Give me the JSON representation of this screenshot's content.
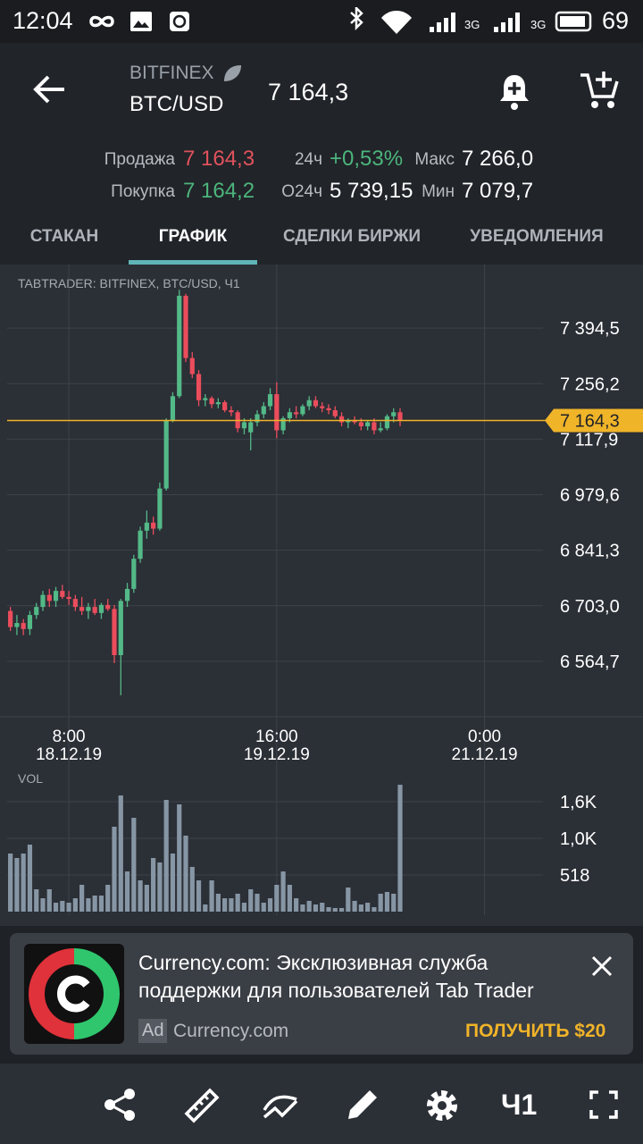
{
  "status_bar": {
    "time": "12:04",
    "network_1": "3G",
    "network_2": "3G",
    "battery": "69"
  },
  "header": {
    "exchange": "BITFINEX",
    "pair": "BTC/USD",
    "price": "7 164,3"
  },
  "stats": [
    {
      "label": "Продажа",
      "value": "7 164,3",
      "color": "#e0525c"
    },
    {
      "label": "Покупка",
      "value": "7 164,2",
      "color": "#4cb57c"
    },
    {
      "label": "24ч",
      "value": "+0,53%",
      "color": "#4cb57c"
    },
    {
      "label": "О24ч",
      "value": "5 739,15",
      "color": "#ffffff"
    },
    {
      "label": "Макс",
      "value": "7 266,0",
      "color": "#ffffff"
    },
    {
      "label": "Мин",
      "value": "7 079,7",
      "color": "#ffffff"
    }
  ],
  "tabs": [
    "СТАКАН",
    "ГРАФИК",
    "СДЕЛКИ БИРЖИ",
    "УВЕДОМЛЕНИЯ"
  ],
  "active_tab": 1,
  "chart_data": {
    "type": "candlestick",
    "title": "TABTRADER: BITFINEX, BTC/USD, Ч1",
    "x": [
      0,
      1,
      2,
      3,
      4,
      5,
      6,
      7,
      8,
      9,
      10,
      11,
      12,
      13,
      14,
      15,
      16,
      17,
      18,
      19,
      20,
      21,
      22,
      23,
      24,
      25,
      26,
      27,
      28,
      29,
      30,
      31,
      32,
      33,
      34,
      35,
      36,
      37,
      38,
      39,
      40,
      41,
      42,
      43,
      44,
      45,
      46,
      47,
      48,
      49,
      50,
      51,
      52,
      53,
      54,
      55,
      56,
      57,
      58,
      59,
      60
    ],
    "open": [
      6690,
      6650,
      6660,
      6645,
      6680,
      6700,
      6730,
      6715,
      6740,
      6725,
      6720,
      6700,
      6690,
      6700,
      6685,
      6705,
      6695,
      6580,
      6715,
      6745,
      6820,
      6890,
      6910,
      6895,
      6995,
      7165,
      7225,
      7475,
      7320,
      7280,
      7215,
      7220,
      7205,
      7210,
      7190,
      7185,
      7145,
      7135,
      7160,
      7180,
      7200,
      7230,
      7140,
      7170,
      7185,
      7180,
      7200,
      7215,
      7200,
      7195,
      7190,
      7175,
      7160,
      7165,
      7160,
      7150,
      7160,
      7140,
      7145,
      7175,
      7185
    ],
    "high": [
      6700,
      6680,
      6670,
      6690,
      6710,
      6740,
      6745,
      6750,
      6755,
      6740,
      6730,
      6725,
      6710,
      6720,
      6710,
      6720,
      6705,
      6720,
      6760,
      6830,
      6900,
      6940,
      6925,
      7010,
      7170,
      7235,
      7490,
      7480,
      7335,
      7290,
      7230,
      7225,
      7220,
      7215,
      7200,
      7190,
      7170,
      7170,
      7190,
      7210,
      7245,
      7260,
      7175,
      7195,
      7200,
      7205,
      7225,
      7225,
      7210,
      7205,
      7200,
      7185,
      7170,
      7175,
      7170,
      7165,
      7170,
      7160,
      7180,
      7195,
      7195
    ],
    "low": [
      6640,
      6630,
      6630,
      6630,
      6670,
      6690,
      6700,
      6700,
      6720,
      6705,
      6690,
      6680,
      6670,
      6680,
      6670,
      6690,
      6560,
      6480,
      6700,
      6735,
      6810,
      6870,
      6880,
      6890,
      6990,
      7160,
      7220,
      7310,
      7270,
      7200,
      7200,
      7195,
      7195,
      7185,
      7175,
      7135,
      7130,
      7090,
      7150,
      7170,
      7190,
      7120,
      7130,
      7160,
      7170,
      7175,
      7190,
      7195,
      7185,
      7180,
      7170,
      7150,
      7145,
      7155,
      7140,
      7140,
      7130,
      7135,
      7140,
      7160,
      7150
    ],
    "close": [
      6650,
      6660,
      6645,
      6680,
      6700,
      6730,
      6715,
      6740,
      6725,
      6720,
      6700,
      6690,
      6700,
      6685,
      6705,
      6695,
      6580,
      6715,
      6745,
      6820,
      6890,
      6910,
      6895,
      6995,
      7165,
      7225,
      7475,
      7320,
      7280,
      7215,
      7220,
      7205,
      7210,
      7190,
      7185,
      7145,
      7160,
      7160,
      7180,
      7200,
      7230,
      7140,
      7170,
      7185,
      7180,
      7200,
      7215,
      7200,
      7195,
      7190,
      7175,
      7160,
      7165,
      7160,
      7150,
      7160,
      7140,
      7145,
      7175,
      7185,
      7164.3
    ],
    "up_color": "#53b987",
    "down_color": "#eb4d5c",
    "xlim": [
      -0.5,
      82
    ],
    "xticks": [
      {
        "value": 9,
        "label": "8:00",
        "date": "18.12.19"
      },
      {
        "value": 41,
        "label": "16:00",
        "date": "19.12.19"
      },
      {
        "value": 73,
        "label": "0:00",
        "date": "21.12.19"
      }
    ],
    "ylim": [
      6430.9,
      7532.8
    ],
    "yticks": [
      {
        "value": 6564.7,
        "label": "6 564,7"
      },
      {
        "value": 6703.0,
        "label": "6 703,0"
      },
      {
        "value": 6841.3,
        "label": "6 841,3"
      },
      {
        "value": 6979.6,
        "label": "6 979,6"
      },
      {
        "value": 7117.9,
        "label": "7 117,9"
      },
      {
        "value": 7256.2,
        "label": "7 256,2"
      },
      {
        "value": 7394.5,
        "label": "7 394,5"
      }
    ],
    "grid": true,
    "last_price": {
      "value": 7164.3,
      "label": "7 164,3",
      "color": "#f0b429"
    },
    "volume": {
      "title": "VOL",
      "color": "#8796a5",
      "values": [
        821,
        758,
        821,
        947,
        316,
        189,
        316,
        126,
        152,
        126,
        189,
        379,
        189,
        227,
        227,
        379,
        1200,
        1642,
        568,
        1326,
        442,
        379,
        758,
        695,
        1579,
        821,
        1516,
        1074,
        632,
        442,
        101,
        442,
        253,
        189,
        189,
        253,
        126,
        316,
        253,
        126,
        189,
        379,
        568,
        379,
        189,
        101,
        152,
        101,
        126,
        63,
        51,
        51,
        341,
        152,
        101,
        126,
        63,
        253,
        278,
        253,
        1793
      ],
      "ylim": [
        0,
        2021
      ],
      "yticks": [
        {
          "value": 518,
          "label": "518"
        },
        {
          "value": 1036,
          "label": "1,0K"
        },
        {
          "value": 1554,
          "label": "1,6K"
        }
      ]
    }
  },
  "ad": {
    "title_lines": [
      "Currency.com: Эксклюзивная служба",
      "поддержки для пользователей Tab Trader"
    ],
    "badge": "Ad",
    "source": "Currency.com",
    "cta": "ПОЛУЧИТЬ $20"
  },
  "toolbar": {
    "interval": "Ч1"
  }
}
